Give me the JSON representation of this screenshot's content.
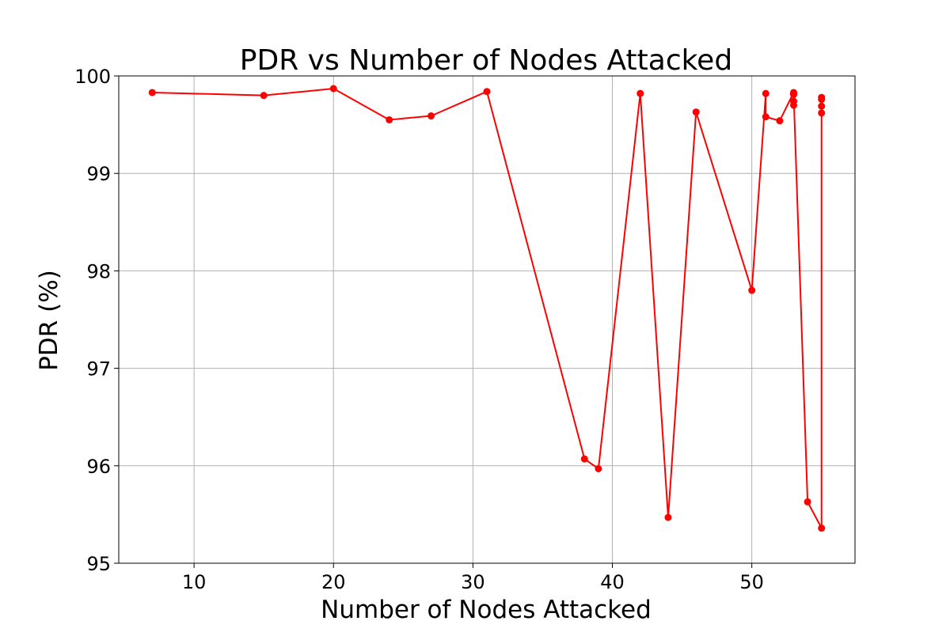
{
  "chart_data": {
    "type": "line",
    "title": "PDR vs Number of Nodes Attacked",
    "xlabel": "Number of Nodes Attacked",
    "ylabel": "PDR (%)",
    "xlim": [
      4.6,
      57.4
    ],
    "ylim": [
      95,
      100
    ],
    "xticks": [
      10,
      20,
      30,
      40,
      50
    ],
    "yticks": [
      95,
      96,
      97,
      98,
      99,
      100
    ],
    "grid": true,
    "line_color": "#ff0000",
    "marker": "circle",
    "series": [
      {
        "x": [
          7,
          15,
          20,
          24,
          27,
          31,
          38,
          39,
          42,
          44,
          46,
          50,
          51,
          51,
          52,
          53,
          53,
          53,
          53,
          53,
          54,
          55,
          55,
          55,
          55,
          55
        ],
        "y": [
          99.83,
          99.8,
          99.87,
          99.55,
          99.59,
          99.84,
          96.07,
          95.97,
          99.82,
          95.47,
          99.63,
          97.8,
          99.82,
          99.58,
          99.54,
          99.83,
          99.81,
          99.74,
          99.7,
          99.82,
          95.63,
          95.36,
          99.62,
          99.69,
          99.76,
          99.78
        ]
      }
    ]
  }
}
